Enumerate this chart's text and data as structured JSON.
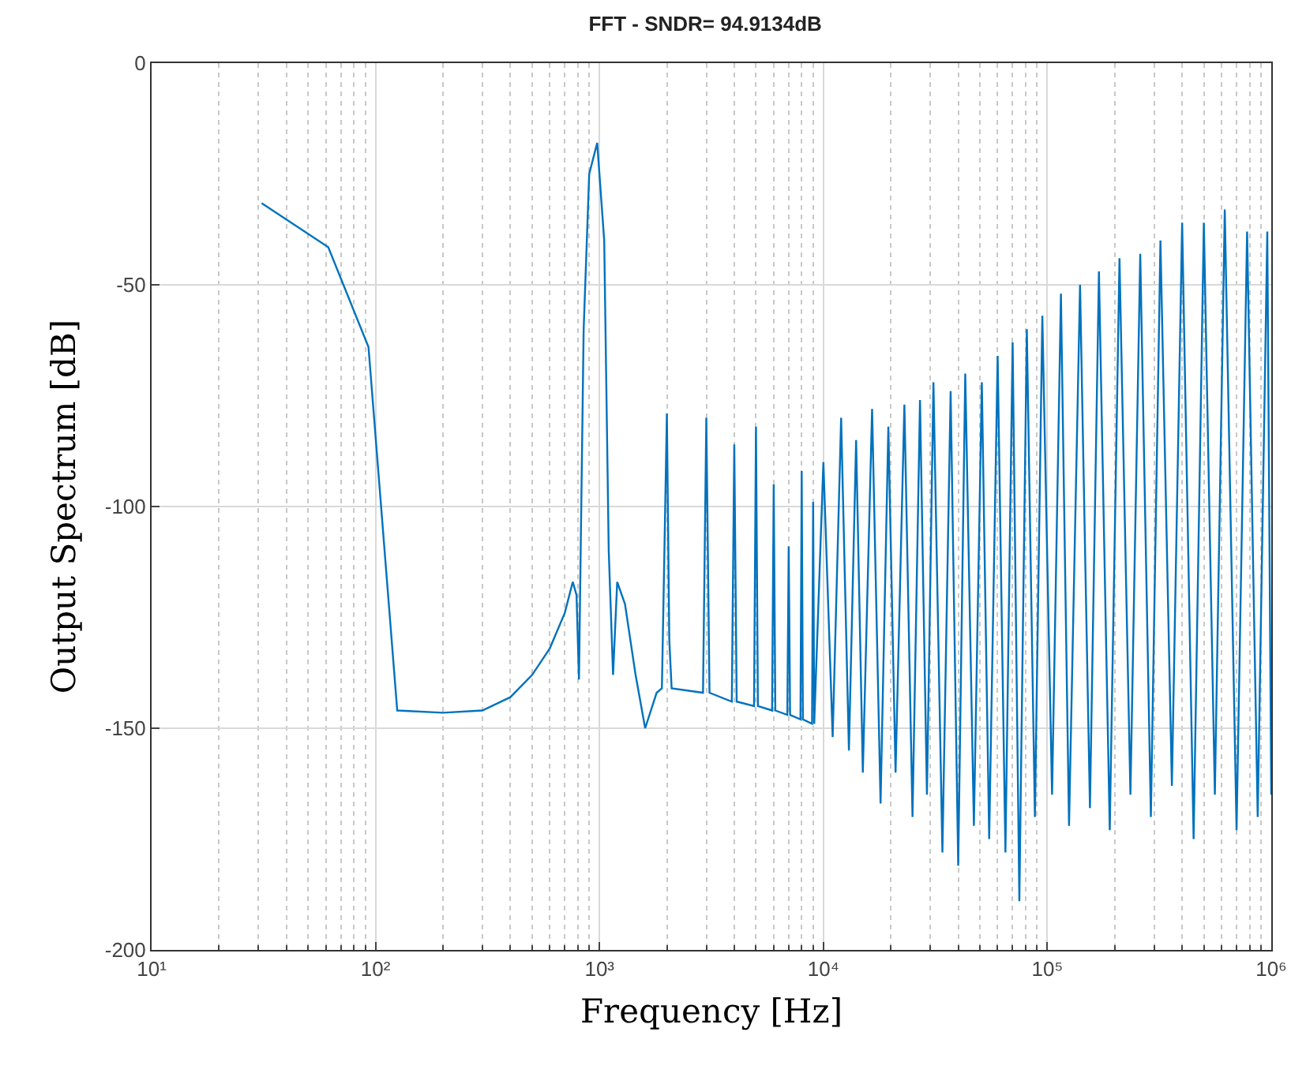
{
  "chart_data": {
    "type": "line",
    "title": "FFT - SNDR= 94.9134dB",
    "xlabel": "Frequency [Hz]",
    "ylabel": "Output Spectrum [dB]",
    "log": "x",
    "grid": true,
    "marker": "none",
    "line_style": "solid",
    "xlim": [
      10,
      1000000
    ],
    "xticks": [
      {
        "value": 10,
        "label": "10¹"
      },
      {
        "value": 100,
        "label": "10²"
      },
      {
        "value": 1000,
        "label": "10³"
      },
      {
        "value": 10000,
        "label": "10⁴"
      },
      {
        "value": 100000,
        "label": "10⁵"
      },
      {
        "value": 1000000,
        "label": "10⁶"
      }
    ],
    "ylim": [
      -200,
      0
    ],
    "yticks": [
      -200,
      -150,
      -100,
      -50,
      0
    ],
    "x": [
      31,
      61.5,
      93,
      125,
      200,
      300,
      400,
      500,
      600,
      700,
      760,
      790,
      810,
      850,
      900,
      977,
      1050,
      1100,
      1150,
      1200,
      1300,
      1450,
      1600,
      1800,
      1900,
      1950,
      2000,
      2050,
      2100,
      2900,
      3000,
      3100,
      3900,
      4000,
      4100,
      4900,
      5000,
      5100,
      5900,
      6000,
      6100,
      6900,
      7000,
      7100,
      7900,
      8000,
      8100,
      8900,
      9000,
      9100,
      10000,
      11000,
      12000,
      13000,
      14000,
      15000,
      16500,
      18000,
      19500,
      21000,
      23000,
      25000,
      27000,
      29000,
      31000,
      34000,
      37000,
      40000,
      43000,
      47000,
      51000,
      55000,
      60000,
      65000,
      70000,
      75000,
      81000,
      88000,
      95000,
      105000,
      115000,
      125000,
      140000,
      155000,
      170000,
      190000,
      210000,
      235000,
      260000,
      290000,
      320000,
      360000,
      400000,
      450000,
      500000,
      560000,
      620000,
      700000,
      780000,
      870000,
      960000,
      1000000
    ],
    "series": [
      {
        "color": "#0072bd",
        "values": [
          -31.6,
          -41.5,
          -64,
          -146,
          -146.5,
          -146,
          -143,
          -138,
          -132,
          -124,
          -117,
          -120,
          -139,
          -60,
          -25,
          -18,
          -40,
          -110,
          -138,
          -117,
          -122,
          -138,
          -150,
          -142,
          -141,
          -110,
          -79,
          -130,
          -141,
          -142,
          -80,
          -142,
          -144,
          -86,
          -144,
          -145,
          -82,
          -145,
          -146,
          -95,
          -146,
          -147,
          -109,
          -147,
          -148,
          -92,
          -148,
          -149,
          -99,
          -149,
          -90,
          -152,
          -80,
          -155,
          -85,
          -160,
          -78,
          -167,
          -82,
          -160,
          -77,
          -170,
          -76,
          -165,
          -72,
          -178,
          -74,
          -181,
          -70,
          -172,
          -72,
          -175,
          -66,
          -178,
          -63,
          -189,
          -60,
          -170,
          -57,
          -165,
          -52,
          -172,
          -50,
          -168,
          -47,
          -173,
          -44,
          -165,
          -43,
          -170,
          -40,
          -163,
          -36,
          -175,
          -36,
          -165,
          -33,
          -173,
          -38,
          -170,
          -38,
          -165
        ]
      }
    ]
  }
}
